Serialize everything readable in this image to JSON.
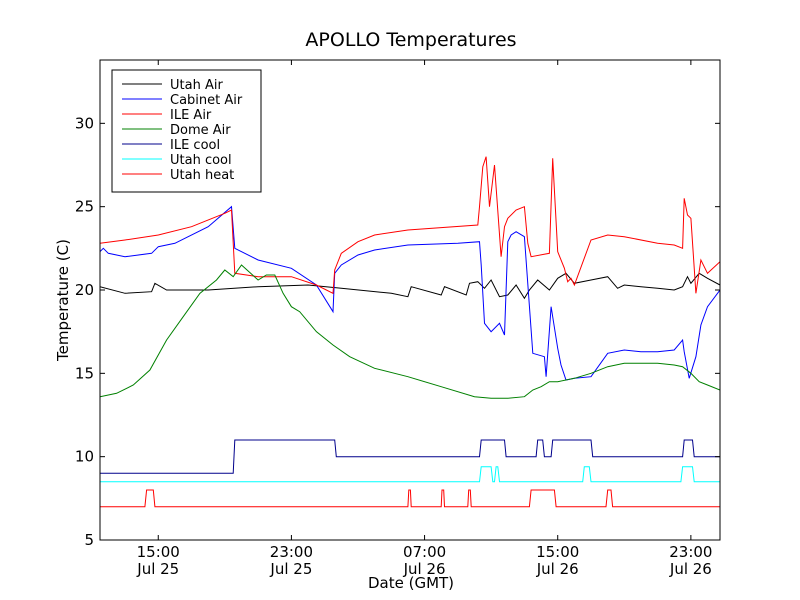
{
  "chart_data": {
    "type": "line",
    "title": "APOLLO Temperatures",
    "xlabel": "Date (GMT)",
    "ylabel": "Temperature (C)",
    "x_unit": "hours since Jul 25 00:00 GMT",
    "xlim": [
      11.5,
      48.75
    ],
    "ylim": [
      5,
      33.8
    ],
    "yticks": [
      {
        "value": 5,
        "label": "5"
      },
      {
        "value": 10,
        "label": "10"
      },
      {
        "value": 15,
        "label": "15"
      },
      {
        "value": 20,
        "label": "20"
      },
      {
        "value": 25,
        "label": "25"
      },
      {
        "value": 30,
        "label": "30"
      }
    ],
    "xticks": [
      {
        "value": 15,
        "time": "15:00",
        "date": "Jul 25"
      },
      {
        "value": 23,
        "time": "23:00",
        "date": "Jul 25"
      },
      {
        "value": 31,
        "time": "07:00",
        "date": "Jul 26"
      },
      {
        "value": 39,
        "time": "15:00",
        "date": "Jul 26"
      },
      {
        "value": 47,
        "time": "23:00",
        "date": "Jul 26"
      }
    ],
    "legend_position": "top-left",
    "series": [
      {
        "name": "Utah Air",
        "color": "#000000",
        "x": [
          11.5,
          13,
          14.6,
          14.8,
          15.5,
          18,
          21,
          24,
          26,
          29,
          30,
          30.2,
          32,
          32.2,
          33.5,
          33.7,
          34.2,
          34.6,
          35,
          35.5,
          36,
          36.5,
          37,
          37.3,
          37.8,
          38.5,
          39,
          39.5,
          40,
          41,
          42,
          42.6,
          43,
          44,
          45,
          46,
          46.5,
          46.8,
          47,
          47.5,
          48,
          48.75
        ],
        "y": [
          20.2,
          19.8,
          19.9,
          20.4,
          20,
          20,
          20.2,
          20.3,
          20.1,
          19.8,
          19.6,
          20.2,
          19.7,
          20.2,
          19.7,
          20.4,
          20.5,
          20.1,
          20.6,
          19.6,
          19.7,
          20.3,
          19.5,
          20,
          20.6,
          20,
          20.7,
          21,
          20.4,
          20.6,
          20.8,
          20.1,
          20.3,
          20.2,
          20.1,
          20,
          20.2,
          20.8,
          20.4,
          21,
          20.7,
          20.3
        ]
      },
      {
        "name": "Cabinet Air",
        "color": "#0000ff",
        "x": [
          11.5,
          11.7,
          12,
          13,
          14.6,
          15,
          16,
          18,
          19.4,
          19.6,
          21,
          23,
          24.5,
          25.5,
          25.6,
          26,
          27,
          28,
          30,
          33,
          34.3,
          34.4,
          34.6,
          35,
          35.5,
          35.8,
          36,
          36.2,
          36.5,
          37,
          37.5,
          38.2,
          38.3,
          38.6,
          39,
          39.2,
          39.5,
          40,
          41,
          42,
          43,
          44,
          44.5,
          45,
          46,
          46.5,
          46.6,
          46.9,
          47.3,
          47.6,
          48,
          48.75
        ],
        "y": [
          22.3,
          22.5,
          22.2,
          22,
          22.2,
          22.6,
          22.8,
          23.8,
          25,
          22.5,
          21.8,
          21.3,
          20.3,
          18.7,
          21,
          21.5,
          22.1,
          22.4,
          22.7,
          22.8,
          22.9,
          21.5,
          18,
          17.5,
          18,
          17.3,
          22.9,
          23.3,
          23.5,
          23.2,
          16.2,
          16,
          14.8,
          19,
          16.5,
          15.5,
          14.6,
          14.7,
          14.8,
          16.2,
          16.4,
          16.3,
          16.3,
          16.3,
          16.4,
          17,
          16.3,
          14.7,
          16,
          17.9,
          19,
          20
        ]
      },
      {
        "name": "ILE Air",
        "color": "#ff0000",
        "x": [
          11.5,
          13,
          15,
          17,
          19,
          19.4,
          19.6,
          21,
          23,
          24.5,
          25.5,
          25.6,
          26,
          27,
          28,
          30,
          34.2,
          34.3,
          34.5,
          34.7,
          34.9,
          35.2,
          35.6,
          35.8,
          36,
          36.5,
          37,
          37.2,
          37.4,
          38.5,
          38.7,
          39,
          39.4,
          39.6,
          39.8,
          40,
          41,
          42,
          43,
          45,
          46,
          46.5,
          46.6,
          46.8,
          47,
          47.3,
          47.6,
          48,
          48.75
        ],
        "y": [
          22.8,
          23,
          23.3,
          23.8,
          24.6,
          24.8,
          21,
          20.8,
          20.8,
          20.3,
          19.8,
          21.2,
          22.2,
          22.9,
          23.3,
          23.6,
          23.9,
          25,
          27.4,
          28,
          25,
          27.5,
          22,
          23.8,
          24.3,
          24.8,
          25,
          22.8,
          22,
          22.2,
          27.9,
          22.3,
          21.3,
          20.5,
          20.7,
          20.3,
          23,
          23.3,
          23.2,
          22.8,
          22.7,
          22.5,
          25.5,
          24.5,
          24.3,
          19.8,
          21.8,
          21,
          21.7
        ]
      },
      {
        "name": "Dome Air",
        "color": "#008000",
        "x": [
          11.5,
          12.5,
          13.5,
          14.5,
          15.5,
          16.5,
          17.5,
          18.5,
          19,
          19.5,
          20,
          21,
          21.5,
          22,
          22.5,
          23,
          23.5,
          24.5,
          25.5,
          26.5,
          28,
          30,
          32,
          34,
          35,
          36,
          37,
          37.5,
          38,
          38.5,
          39,
          40,
          41,
          42,
          43,
          44,
          45,
          46,
          46.5,
          47,
          47.5,
          48,
          48.75
        ],
        "y": [
          13.6,
          13.8,
          14.3,
          15.2,
          17,
          18.4,
          19.8,
          20.6,
          21.2,
          20.8,
          21.5,
          20.6,
          20.9,
          20.9,
          19.8,
          19,
          18.7,
          17.5,
          16.7,
          16,
          15.3,
          14.8,
          14.2,
          13.6,
          13.5,
          13.5,
          13.6,
          14,
          14.2,
          14.5,
          14.5,
          14.7,
          15,
          15.4,
          15.6,
          15.6,
          15.6,
          15.5,
          15.4,
          15,
          14.5,
          14.3,
          14
        ]
      },
      {
        "name": "ILE cool",
        "color": "#00008b",
        "x": [
          11.5,
          19.5,
          19.6,
          25.6,
          25.7,
          34.3,
          34.4,
          35.8,
          35.9,
          37.7,
          37.8,
          38.1,
          38.2,
          38.6,
          38.7,
          41,
          41.1,
          46.5,
          46.6,
          47.1,
          47.2,
          48.75
        ],
        "y": [
          9,
          9,
          11,
          11,
          10,
          10,
          11,
          11,
          10,
          10,
          11,
          11,
          10,
          10,
          11,
          11,
          10,
          10,
          11,
          11,
          10,
          10
        ]
      },
      {
        "name": "Utah cool",
        "color": "#00ffff",
        "x": [
          11.5,
          34.3,
          34.4,
          35,
          35.1,
          35.2,
          35.3,
          35.4,
          35.5,
          40.5,
          40.6,
          40.9,
          41,
          46.4,
          46.5,
          47.1,
          47.2,
          48.75
        ],
        "y": [
          8.5,
          8.5,
          9.4,
          9.4,
          8.5,
          8.5,
          9.4,
          9.4,
          8.5,
          8.5,
          9.4,
          9.4,
          8.5,
          8.5,
          9.4,
          9.4,
          8.5,
          8.5
        ]
      },
      {
        "name": "Utah heat",
        "color": "#ff0000",
        "x": [
          11.5,
          14.2,
          14.3,
          14.7,
          14.8,
          30,
          30.05,
          30.15,
          30.2,
          32,
          32.05,
          32.15,
          32.2,
          33.6,
          33.65,
          33.75,
          33.8,
          37.3,
          37.4,
          38.8,
          38.9,
          41.9,
          42,
          42.2,
          42.3,
          48.75
        ],
        "y": [
          7,
          7,
          8,
          8,
          7,
          7,
          8,
          8,
          7,
          7,
          8,
          8,
          7,
          7,
          8,
          8,
          7,
          7,
          8,
          8,
          7,
          7,
          8,
          8,
          7,
          7
        ]
      }
    ]
  }
}
